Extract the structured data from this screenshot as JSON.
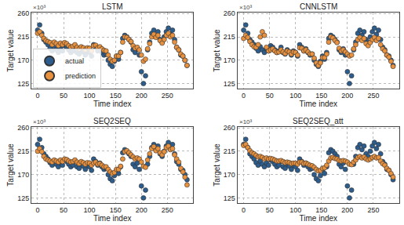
{
  "chart_data": [
    {
      "type": "scatter",
      "title": "LSTM",
      "x_label": "Time index",
      "y_label": "Target value",
      "annotations": [
        {
          "text": "×10³"
        }
      ],
      "xlim": [
        -12,
        300
      ],
      "xticks": [
        0,
        50,
        100,
        150,
        200,
        250
      ],
      "ylim": [
        115,
        262
      ],
      "yticks": [
        125,
        170,
        215,
        260
      ],
      "grid": true,
      "legend": "lower left",
      "marker": "circle",
      "x": [
        0,
        4,
        8,
        12,
        16,
        20,
        24,
        28,
        32,
        36,
        40,
        44,
        48,
        52,
        56,
        60,
        64,
        68,
        72,
        76,
        80,
        84,
        88,
        92,
        96,
        100,
        104,
        108,
        112,
        116,
        120,
        124,
        128,
        132,
        136,
        140,
        144,
        148,
        152,
        156,
        160,
        164,
        168,
        172,
        176,
        180,
        184,
        188,
        192,
        196,
        200,
        204,
        208,
        212,
        216,
        220,
        224,
        228,
        232,
        236,
        240,
        244,
        248,
        252,
        256,
        260,
        264,
        268,
        272,
        276,
        280,
        284,
        288
      ],
      "series": [
        {
          "name": "actual",
          "color": "#2d5d8c",
          "values": [
            228,
            238,
            222,
            210,
            205,
            200,
            193,
            188,
            196,
            190,
            185,
            192,
            188,
            198,
            195,
            190,
            185,
            188,
            195,
            185,
            182,
            190,
            186,
            180,
            188,
            185,
            178,
            200,
            195,
            188,
            192,
            185,
            180,
            182,
            170,
            162,
            158,
            168,
            178,
            172,
            185,
            212,
            218,
            215,
            210,
            205,
            190,
            185,
            192,
            180,
            148,
            125,
            140,
            190,
            205,
            222,
            228,
            218,
            225,
            210,
            205,
            215,
            225,
            232,
            220,
            228,
            210,
            195,
            190,
            180,
            178,
            170,
            160
          ]
        },
        {
          "name": "prediction",
          "color": "#e8913f",
          "values": [
            222,
            225,
            218,
            212,
            208,
            206,
            204,
            200,
            205,
            202,
            198,
            203,
            200,
            204,
            202,
            198,
            195,
            197,
            200,
            195,
            192,
            196,
            194,
            190,
            194,
            193,
            188,
            198,
            199,
            194,
            196,
            192,
            189,
            188,
            180,
            172,
            168,
            170,
            178,
            178,
            185,
            205,
            215,
            214,
            210,
            206,
            198,
            193,
            195,
            190,
            180,
            168,
            172,
            192,
            202,
            215,
            220,
            214,
            218,
            208,
            203,
            210,
            218,
            222,
            215,
            218,
            205,
            195,
            190,
            182,
            178,
            170,
            160
          ]
        }
      ]
    },
    {
      "type": "scatter",
      "title": "CNNLSTM",
      "x_label": "Time index",
      "y_label": "Target value",
      "annotations": [
        {
          "text": "×10³"
        }
      ],
      "xlim": [
        -12,
        300
      ],
      "xticks": [
        0,
        50,
        100,
        150,
        200,
        250
      ],
      "ylim": [
        115,
        262
      ],
      "yticks": [
        125,
        170,
        215,
        260
      ],
      "grid": true,
      "marker": "circle",
      "x": [
        0,
        4,
        8,
        12,
        16,
        20,
        24,
        28,
        32,
        36,
        40,
        44,
        48,
        52,
        56,
        60,
        64,
        68,
        72,
        76,
        80,
        84,
        88,
        92,
        96,
        100,
        104,
        108,
        112,
        116,
        120,
        124,
        128,
        132,
        136,
        140,
        144,
        148,
        152,
        156,
        160,
        164,
        168,
        172,
        176,
        180,
        184,
        188,
        192,
        196,
        200,
        204,
        208,
        212,
        216,
        220,
        224,
        228,
        232,
        236,
        240,
        244,
        248,
        252,
        256,
        260,
        264,
        268,
        272,
        276,
        280,
        284,
        288
      ],
      "series": [
        {
          "name": "actual",
          "color": "#2d5d8c",
          "values": [
            228,
            238,
            222,
            210,
            205,
            200,
            193,
            188,
            196,
            190,
            185,
            192,
            188,
            198,
            195,
            190,
            185,
            188,
            195,
            185,
            182,
            190,
            186,
            180,
            188,
            185,
            178,
            200,
            195,
            188,
            192,
            185,
            180,
            182,
            170,
            162,
            158,
            168,
            178,
            172,
            185,
            212,
            218,
            215,
            210,
            205,
            190,
            185,
            192,
            180,
            148,
            125,
            140,
            190,
            205,
            222,
            228,
            218,
            225,
            210,
            205,
            215,
            225,
            232,
            220,
            228,
            210,
            195,
            190,
            180,
            178,
            170,
            160
          ]
        },
        {
          "name": "prediction",
          "color": "#e8913f",
          "values": [
            212,
            218,
            214,
            206,
            200,
            196,
            195,
            200,
            215,
            225,
            218,
            195,
            188,
            190,
            192,
            188,
            185,
            186,
            190,
            186,
            183,
            188,
            186,
            182,
            186,
            185,
            180,
            194,
            193,
            188,
            190,
            186,
            182,
            182,
            174,
            165,
            160,
            165,
            175,
            175,
            182,
            205,
            215,
            213,
            208,
            204,
            193,
            188,
            190,
            186,
            182,
            178,
            180,
            192,
            200,
            210,
            214,
            208,
            212,
            202,
            198,
            204,
            210,
            214,
            208,
            212,
            200,
            192,
            188,
            180,
            176,
            168,
            158
          ]
        }
      ]
    },
    {
      "type": "scatter",
      "title": "SEQ2SEQ",
      "x_label": "Time index",
      "y_label": "Target value",
      "annotations": [
        {
          "text": "×10³"
        }
      ],
      "xlim": [
        -12,
        300
      ],
      "xticks": [
        0,
        50,
        100,
        150,
        200,
        250
      ],
      "ylim": [
        115,
        262
      ],
      "yticks": [
        125,
        170,
        215,
        260
      ],
      "grid": true,
      "marker": "circle",
      "x": [
        0,
        4,
        8,
        12,
        16,
        20,
        24,
        28,
        32,
        36,
        40,
        44,
        48,
        52,
        56,
        60,
        64,
        68,
        72,
        76,
        80,
        84,
        88,
        92,
        96,
        100,
        104,
        108,
        112,
        116,
        120,
        124,
        128,
        132,
        136,
        140,
        144,
        148,
        152,
        156,
        160,
        164,
        168,
        172,
        176,
        180,
        184,
        188,
        192,
        196,
        200,
        204,
        208,
        212,
        216,
        220,
        224,
        228,
        232,
        236,
        240,
        244,
        248,
        252,
        256,
        260,
        264,
        268,
        272,
        276,
        280,
        284,
        288
      ],
      "series": [
        {
          "name": "actual",
          "color": "#2d5d8c",
          "values": [
            228,
            238,
            222,
            210,
            205,
            200,
            193,
            188,
            196,
            190,
            185,
            192,
            188,
            198,
            195,
            190,
            185,
            188,
            195,
            185,
            182,
            190,
            186,
            180,
            188,
            185,
            178,
            200,
            195,
            188,
            192,
            185,
            180,
            182,
            170,
            162,
            158,
            168,
            178,
            172,
            185,
            212,
            218,
            215,
            210,
            205,
            190,
            185,
            192,
            180,
            148,
            125,
            140,
            190,
            205,
            222,
            228,
            218,
            225,
            210,
            205,
            215,
            225,
            232,
            220,
            228,
            210,
            195,
            190,
            180,
            178,
            170,
            160
          ]
        },
        {
          "name": "prediction",
          "color": "#e8913f",
          "values": [
            215,
            220,
            214,
            205,
            200,
            198,
            196,
            194,
            198,
            196,
            194,
            198,
            195,
            200,
            199,
            196,
            194,
            195,
            198,
            194,
            191,
            195,
            193,
            190,
            193,
            192,
            188,
            192,
            194,
            190,
            191,
            188,
            185,
            185,
            180,
            175,
            172,
            174,
            180,
            180,
            186,
            200,
            214,
            216,
            212,
            208,
            204,
            200,
            202,
            200,
            194,
            186,
            184,
            198,
            210,
            220,
            224,
            216,
            220,
            212,
            208,
            214,
            222,
            225,
            218,
            220,
            208,
            200,
            194,
            182,
            175,
            165,
            150
          ]
        }
      ]
    },
    {
      "type": "scatter",
      "title": "SEQ2SEQ_att",
      "x_label": "Time index",
      "y_label": "Target value",
      "annotations": [
        {
          "text": "×10³"
        }
      ],
      "xlim": [
        -12,
        300
      ],
      "xticks": [
        0,
        50,
        100,
        150,
        200,
        250
      ],
      "ylim": [
        115,
        262
      ],
      "yticks": [
        125,
        170,
        215,
        260
      ],
      "grid": true,
      "marker": "circle",
      "x": [
        0,
        4,
        8,
        12,
        16,
        20,
        24,
        28,
        32,
        36,
        40,
        44,
        48,
        52,
        56,
        60,
        64,
        68,
        72,
        76,
        80,
        84,
        88,
        92,
        96,
        100,
        104,
        108,
        112,
        116,
        120,
        124,
        128,
        132,
        136,
        140,
        144,
        148,
        152,
        156,
        160,
        164,
        168,
        172,
        176,
        180,
        184,
        188,
        192,
        196,
        200,
        204,
        208,
        212,
        216,
        220,
        224,
        228,
        232,
        236,
        240,
        244,
        248,
        252,
        256,
        260,
        264,
        268,
        272,
        276,
        280,
        284,
        288
      ],
      "series": [
        {
          "name": "actual",
          "color": "#2d5d8c",
          "values": [
            228,
            238,
            222,
            210,
            205,
            200,
            193,
            188,
            196,
            190,
            185,
            192,
            188,
            198,
            195,
            190,
            185,
            188,
            195,
            185,
            182,
            190,
            186,
            180,
            188,
            185,
            178,
            200,
            195,
            188,
            192,
            185,
            180,
            182,
            170,
            162,
            158,
            168,
            178,
            172,
            185,
            212,
            218,
            215,
            210,
            205,
            190,
            185,
            192,
            180,
            148,
            125,
            140,
            190,
            205,
            222,
            228,
            218,
            225,
            210,
            205,
            215,
            225,
            232,
            220,
            228,
            210,
            195,
            190,
            180,
            178,
            170,
            160
          ]
        },
        {
          "name": "prediction",
          "color": "#e8913f",
          "values": [
            226,
            228,
            222,
            216,
            212,
            210,
            207,
            204,
            205,
            203,
            200,
            202,
            200,
            201,
            200,
            198,
            196,
            196,
            197,
            195,
            193,
            194,
            193,
            191,
            192,
            192,
            190,
            194,
            194,
            191,
            192,
            190,
            188,
            187,
            184,
            180,
            177,
            178,
            182,
            183,
            188,
            196,
            202,
            203,
            201,
            200,
            197,
            196,
            197,
            196,
            194,
            190,
            189,
            194,
            198,
            203,
            205,
            202,
            204,
            200,
            198,
            200,
            203,
            205,
            202,
            203,
            196,
            191,
            188,
            182,
            178,
            172,
            165
          ]
        }
      ]
    }
  ]
}
